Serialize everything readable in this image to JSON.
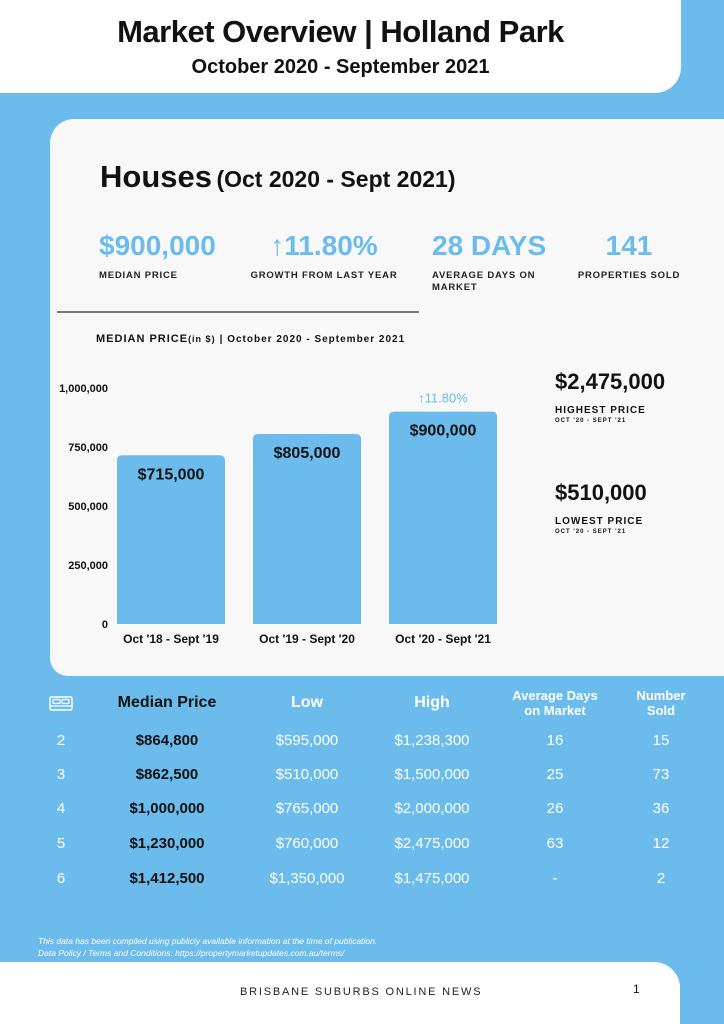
{
  "header": {
    "title": "Market Overview | Holland Park",
    "subtitle": "October 2020 - September 2021"
  },
  "section": {
    "title_big": "Houses",
    "title_small": "(Oct 2020 - Sept 2021)"
  },
  "stats": [
    {
      "value": "$900,000",
      "label": "MEDIAN PRICE"
    },
    {
      "value": "↑11.80%",
      "label": "GROWTH FROM LAST YEAR"
    },
    {
      "value": "28 DAYS",
      "label": "AVERAGE DAYS ON MARKET"
    },
    {
      "value": "141",
      "label": "PROPERTIES SOLD"
    }
  ],
  "chart_title": {
    "main": "MEDIAN PRICE",
    "unit": "(in $)",
    "range": "| October 2020 - September 2021"
  },
  "chart_data": {
    "type": "bar",
    "categories": [
      "Oct '18 - Sept '19",
      "Oct '19 - Sept '20",
      "Oct '20 - Sept '21"
    ],
    "values": [
      715000,
      805000,
      900000
    ],
    "value_labels": [
      "$715,000",
      "$805,000",
      "$900,000"
    ],
    "annotation": {
      "bar_index": 2,
      "text": "↑11.80%"
    },
    "ylim": [
      0,
      1000000
    ],
    "y_ticks": [
      0,
      250000,
      500000,
      750000,
      1000000
    ],
    "y_tick_labels": [
      "0",
      "250,000",
      "500,000",
      "750,000",
      "1,000,000"
    ],
    "grid": false,
    "bar_color": "#6bbcec",
    "title": "",
    "xlabel": "",
    "ylabel": ""
  },
  "side_stats": [
    {
      "value": "$2,475,000",
      "label": "HIGHEST PRICE",
      "range": "OCT '20 - SEPT '21"
    },
    {
      "value": "$510,000",
      "label": "LOWEST PRICE",
      "range": "OCT '20 - SEPT '21"
    }
  ],
  "table": {
    "icon": "bed-icon",
    "headers": {
      "median": "Median Price",
      "low": "Low",
      "high": "High",
      "days_line1": "Average Days",
      "days_line2": "on Market",
      "sold_line1": "Number",
      "sold_line2": "Sold"
    },
    "rows": [
      {
        "beds": "2",
        "median": "$864,800",
        "low": "$595,000",
        "high": "$1,238,300",
        "days": "16",
        "sold": "15"
      },
      {
        "beds": "3",
        "median": "$862,500",
        "low": "$510,000",
        "high": "$1,500,000",
        "days": "25",
        "sold": "73"
      },
      {
        "beds": "4",
        "median": "$1,000,000",
        "low": "$765,000",
        "high": "$2,000,000",
        "days": "26",
        "sold": "36"
      },
      {
        "beds": "5",
        "median": "$1,230,000",
        "low": "$760,000",
        "high": "$2,475,000",
        "days": "63",
        "sold": "12"
      },
      {
        "beds": "6",
        "median": "$1,412,500",
        "low": "$1,350,000",
        "high": "$1,475,000",
        "days": "-",
        "sold": "2"
      }
    ]
  },
  "footnote": {
    "line1": "This data has been compiled using publicly available information at the time of publication.",
    "line2": "Data Policy / Terms and Conditions: https://propertymarketupdates.com.au/terms/"
  },
  "footer": {
    "brand": "BRISBANE SUBURBS ONLINE NEWS",
    "page": "1"
  },
  "colors": {
    "accent": "#6bbcec",
    "card": "#f8f8f8",
    "text": "#111111"
  }
}
